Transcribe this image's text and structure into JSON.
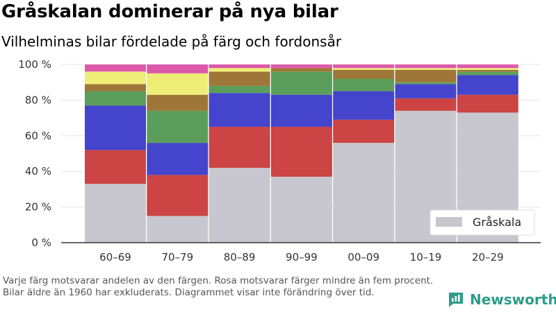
{
  "title": "Gråskalan dominerar på nya bilar",
  "subtitle": "Vilhelminas bilar fördelade på färg och fordonsår",
  "footnote": "Varje färg motsvarar andelen av den färgen. Rosa motsvarar färger mindre än fem procent. Bilar äldre än 1960 har exkluderats. Diagrammet visar inte förändring över tid.",
  "brand": {
    "name": "Newsworthy",
    "icon": "newsworthy-logo-icon"
  },
  "chart_data": {
    "type": "bar",
    "stacked": true,
    "normalized_percent": true,
    "categories": [
      "60–69",
      "70–79",
      "80–89",
      "90–99",
      "00–09",
      "10–19",
      "20–29"
    ],
    "y_ticks": [
      "0 %",
      "20 %",
      "40 %",
      "60 %",
      "80 %",
      "100 %"
    ],
    "ylim": [
      0,
      100
    ],
    "grid": true,
    "legend": {
      "position": "bottom-right",
      "entries": [
        "Gråskala"
      ]
    },
    "series": [
      {
        "name": "Gråskala",
        "color": "#c8c7cf",
        "values": [
          33,
          15,
          42,
          37,
          56,
          74,
          73
        ]
      },
      {
        "color": "#cc4444",
        "values": [
          19,
          23,
          23,
          28,
          13,
          7,
          10
        ]
      },
      {
        "color": "#4444cc",
        "values": [
          25,
          18,
          19,
          18,
          16,
          8,
          11
        ]
      },
      {
        "color": "#5b9e5b",
        "values": [
          8,
          18,
          4,
          13,
          7,
          1,
          2
        ]
      },
      {
        "color": "#9e7637",
        "values": [
          4,
          9,
          8,
          2,
          5,
          7,
          1
        ]
      },
      {
        "color": "#eeee77",
        "values": [
          7,
          12,
          2,
          0,
          1,
          1,
          1
        ]
      },
      {
        "color": "#dd5aab",
        "values": [
          4,
          5,
          2,
          2,
          2,
          2,
          2
        ]
      }
    ]
  }
}
